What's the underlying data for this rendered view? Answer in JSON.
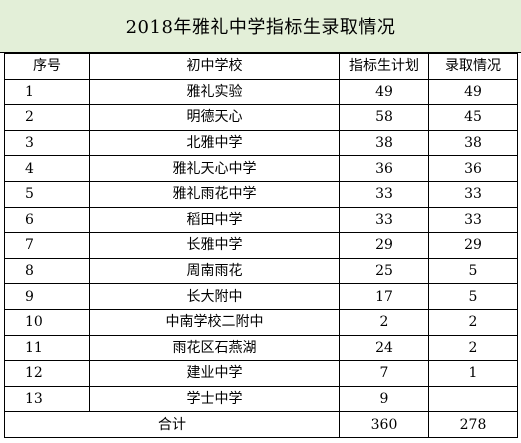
{
  "title": "2018年雅礼中学指标生录取情况",
  "headers": {
    "index": "序号",
    "school": "初中学校",
    "quota": "指标生计划",
    "admitted": "录取情况"
  },
  "rows": [
    {
      "index": "1",
      "school": "雅礼实验",
      "quota": "49",
      "admitted": "49"
    },
    {
      "index": "2",
      "school": "明德天心",
      "quota": "58",
      "admitted": "45"
    },
    {
      "index": "3",
      "school": "北雅中学",
      "quota": "38",
      "admitted": "38"
    },
    {
      "index": "4",
      "school": "雅礼天心中学",
      "quota": "36",
      "admitted": "36"
    },
    {
      "index": "5",
      "school": "雅礼雨花中学",
      "quota": "33",
      "admitted": "33"
    },
    {
      "index": "6",
      "school": "稻田中学",
      "quota": "33",
      "admitted": "33"
    },
    {
      "index": "7",
      "school": "长雅中学",
      "quota": "29",
      "admitted": "29"
    },
    {
      "index": "8",
      "school": "周南雨花",
      "quota": "25",
      "admitted": "5"
    },
    {
      "index": "9",
      "school": "长大附中",
      "quota": "17",
      "admitted": "5"
    },
    {
      "index": "10",
      "school": "中南学校二附中",
      "quota": "2",
      "admitted": "2"
    },
    {
      "index": "11",
      "school": "雨花区石燕湖",
      "quota": "24",
      "admitted": "2"
    },
    {
      "index": "12",
      "school": "建业中学",
      "quota": "7",
      "admitted": "1"
    },
    {
      "index": "13",
      "school": "学士中学",
      "quota": "9",
      "admitted": ""
    }
  ],
  "total": {
    "label": "合计",
    "quota": "360",
    "admitted": "278"
  }
}
